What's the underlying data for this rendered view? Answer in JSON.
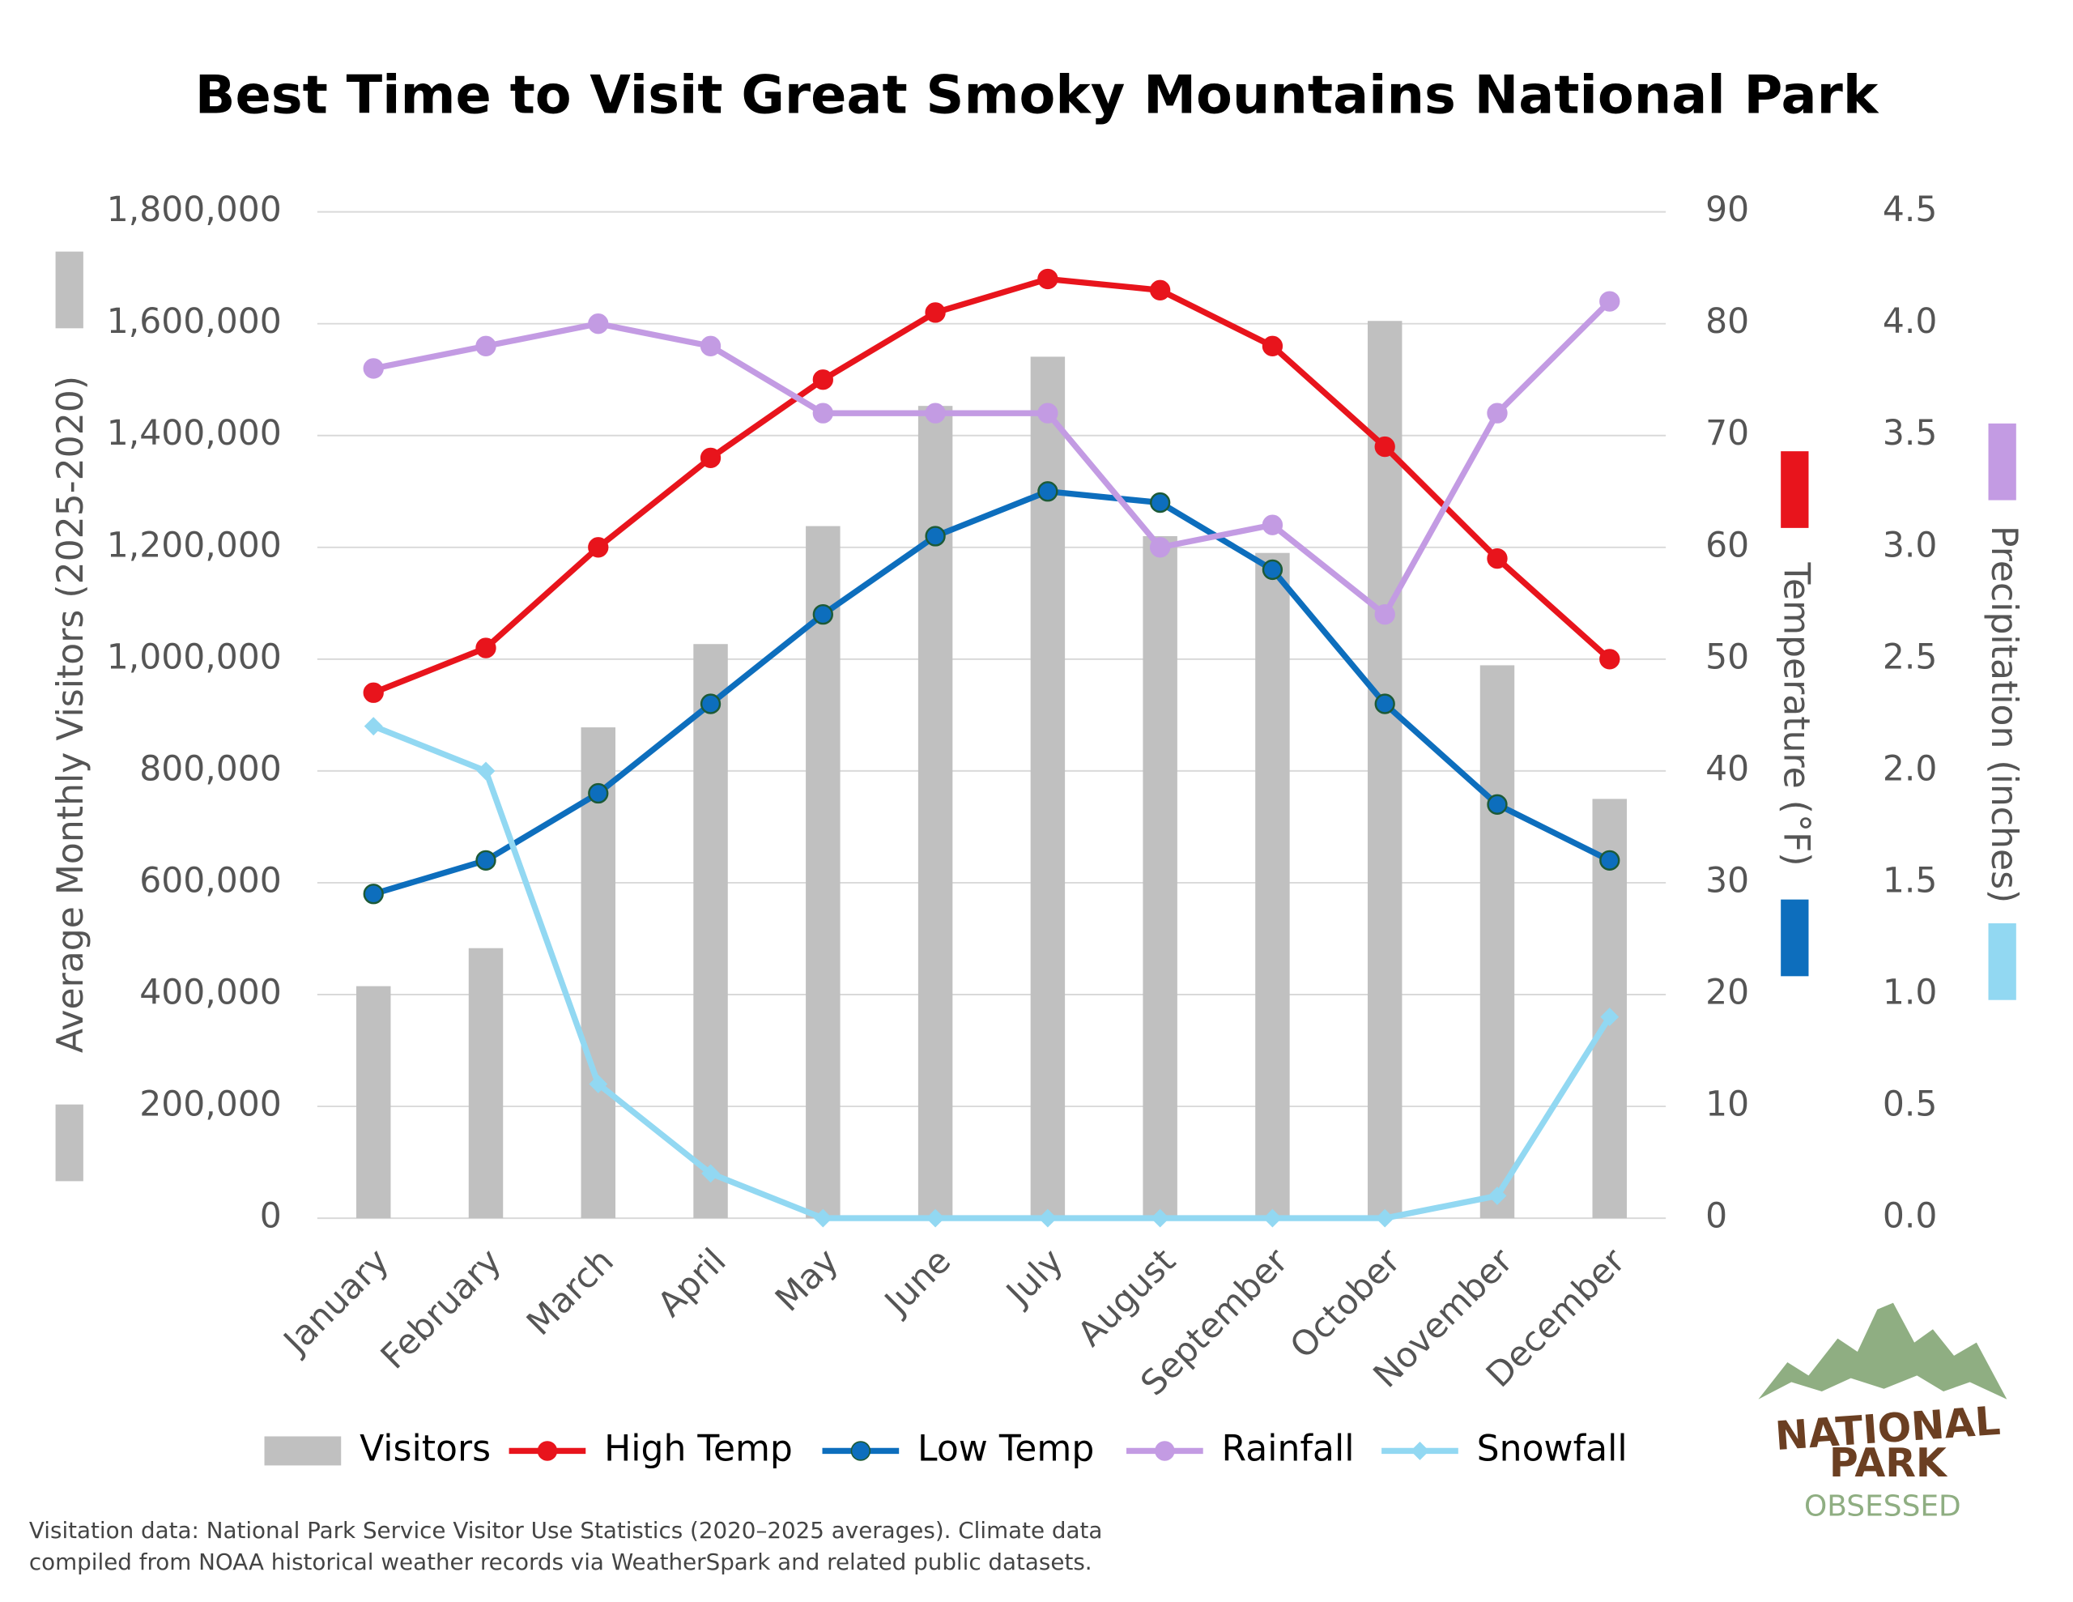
{
  "chart_data": {
    "type": "bar",
    "title": "Best Time to Visit Great Smoky Mountains National Park",
    "y_label": "Average Monthly Visitors (2025-2020)",
    "y2_label": "Temperature (°F)",
    "y3_label": "Precipitation (inches)",
    "categories": [
      "January",
      "February",
      "March",
      "April",
      "May",
      "June",
      "July",
      "August",
      "September",
      "October",
      "November",
      "December"
    ],
    "series": [
      {
        "name": "Visitors",
        "type": "bar",
        "axis": "y",
        "color": "#c0c0c0",
        "values": [
          415000,
          483000,
          878000,
          1027000,
          1238000,
          1453000,
          1541000,
          1220000,
          1190000,
          1605000,
          989000,
          750000
        ]
      },
      {
        "name": "High Temp",
        "type": "line",
        "axis": "y2",
        "color": "#e8141c",
        "marker": "circle",
        "values": [
          47,
          51,
          60,
          68,
          75,
          81,
          84,
          83,
          78,
          69,
          59,
          50
        ]
      },
      {
        "name": "Low Temp",
        "type": "line",
        "axis": "y2",
        "color": "#0d6ebd",
        "marker": "circle",
        "marker_edge": "#1d5a36",
        "values": [
          29,
          32,
          38,
          46,
          54,
          61,
          65,
          64,
          58,
          46,
          37,
          32
        ]
      },
      {
        "name": "Rainfall",
        "type": "line",
        "axis": "y3",
        "color": "#c39be3",
        "marker": "circle",
        "values": [
          3.8,
          3.9,
          4.0,
          3.9,
          3.6,
          3.6,
          3.6,
          3.0,
          3.1,
          2.7,
          3.6,
          4.1
        ]
      },
      {
        "name": "Snowfall",
        "type": "line",
        "axis": "y3",
        "color": "#92d8f2",
        "marker": "diamond",
        "values": [
          2.2,
          2.0,
          0.6,
          0.2,
          0,
          0,
          0,
          0,
          0,
          0,
          0.1,
          0.9
        ]
      }
    ],
    "ylim": [
      0,
      1800000
    ],
    "yticks": [
      {
        "value": 0,
        "label": "0"
      },
      {
        "value": 200000,
        "label": "200,000"
      },
      {
        "value": 400000,
        "label": "400,000"
      },
      {
        "value": 600000,
        "label": "600,000"
      },
      {
        "value": 800000,
        "label": "800,000"
      },
      {
        "value": 1000000,
        "label": "1,000,000"
      },
      {
        "value": 1200000,
        "label": "1,200,000"
      },
      {
        "value": 1400000,
        "label": "1,400,000"
      },
      {
        "value": 1600000,
        "label": "1,600,000"
      },
      {
        "value": 1800000,
        "label": "1,800,000"
      }
    ],
    "y2lim": [
      0,
      90
    ],
    "y2ticks": [
      0,
      10,
      20,
      30,
      40,
      50,
      60,
      70,
      80,
      90
    ],
    "y3lim": [
      0,
      4.5
    ],
    "y3ticks": [
      {
        "value": 0,
        "label": "0.0"
      },
      {
        "value": 0.5,
        "label": "0.5"
      },
      {
        "value": 1,
        "label": "1.0"
      },
      {
        "value": 1.5,
        "label": "1.5"
      },
      {
        "value": 2,
        "label": "2.0"
      },
      {
        "value": 2.5,
        "label": "2.5"
      },
      {
        "value": 3,
        "label": "3.0"
      },
      {
        "value": 3.5,
        "label": "3.5"
      },
      {
        "value": 4,
        "label": "4.0"
      },
      {
        "value": 4.5,
        "label": "4.5"
      }
    ],
    "grid": true,
    "legend": "bottom",
    "footnote": [
      "Visitation data: National Park Service Visitor Use Statistics (2020–2025 averages). Climate data",
      "compiled from NOAA historical weather records via WeatherSpark and related public datasets."
    ],
    "logo": [
      "NATIONAL",
      "PARK",
      "OBSESSED"
    ]
  }
}
